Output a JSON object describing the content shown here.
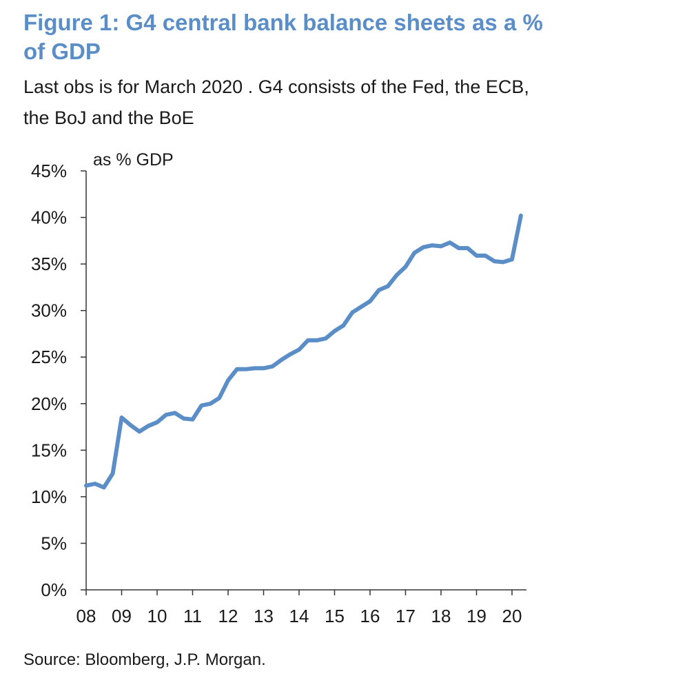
{
  "header": {
    "title": "Figure 1: G4 central bank balance sheets as a % of GDP",
    "subtitle": "Last obs is for March 2020 . G4 consists of the Fed, the ECB, the BoJ and the BoE"
  },
  "footer": {
    "source": "Source: Bloomberg, J.P. Morgan."
  },
  "chart_data": {
    "type": "line",
    "title": "Figure 1: G4 central bank balance sheets as a % of GDP",
    "subtitle": "Last obs is for March 2020 . G4 consists of the Fed, the ECB, the BoJ and the BoE",
    "xlabel": "",
    "ylabel": "as % GDP",
    "x_tick_labels": [
      "08",
      "09",
      "10",
      "11",
      "12",
      "13",
      "14",
      "15",
      "16",
      "17",
      "18",
      "19",
      "20"
    ],
    "y_tick_labels": [
      "0%",
      "5%",
      "10%",
      "15%",
      "20%",
      "25%",
      "30%",
      "35%",
      "40%",
      "45%"
    ],
    "ylim": [
      0,
      45
    ],
    "xlim": [
      2008.0,
      2020.25
    ],
    "grid": false,
    "line_color": "#5b8ec7",
    "series": [
      {
        "x": [
          2008.0,
          2008.25,
          2008.5,
          2008.75,
          2009.0,
          2009.25,
          2009.5,
          2009.75,
          2010.0,
          2010.25,
          2010.5,
          2010.75,
          2011.0,
          2011.25,
          2011.5,
          2011.75,
          2012.0,
          2012.25,
          2012.5,
          2012.75,
          2013.0,
          2013.25,
          2013.5,
          2013.75,
          2014.0,
          2014.25,
          2014.5,
          2014.75,
          2015.0,
          2015.25,
          2015.5,
          2015.75,
          2016.0,
          2016.25,
          2016.5,
          2016.75,
          2017.0,
          2017.25,
          2017.5,
          2017.75,
          2018.0,
          2018.25,
          2018.5,
          2018.75,
          2019.0,
          2019.25,
          2019.5,
          2019.75,
          2020.0,
          2020.25
        ],
        "values": [
          11.2,
          11.4,
          11.0,
          12.5,
          18.5,
          17.7,
          17.0,
          17.6,
          18.0,
          18.8,
          19.0,
          18.4,
          18.3,
          19.8,
          20.0,
          20.6,
          22.5,
          23.7,
          23.7,
          23.8,
          23.8,
          24.0,
          24.7,
          25.3,
          25.8,
          26.8,
          26.8,
          27.0,
          27.8,
          28.4,
          29.8,
          30.4,
          31.0,
          32.2,
          32.6,
          33.8,
          34.7,
          36.2,
          36.8,
          37.0,
          36.9,
          37.3,
          36.7,
          36.7,
          35.9,
          35.9,
          35.3,
          35.2,
          35.5,
          40.2
        ]
      }
    ]
  }
}
